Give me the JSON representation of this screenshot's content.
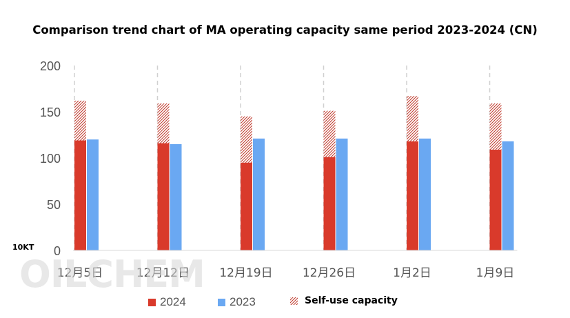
{
  "watermark": "OILCHEM",
  "chart_data": {
    "type": "bar",
    "title": "Comparison trend chart of MA operating capacity same period 2023-2024 (CN)",
    "ylabel": "10KT",
    "ylim": [
      0,
      200
    ],
    "yticks": [
      0,
      50,
      100,
      150,
      200
    ],
    "grid": false,
    "legend_position": "bottom",
    "categories": [
      "12月5日",
      "12月12日",
      "12月19日",
      "12月26日",
      "1月2日",
      "1月9日"
    ],
    "series": [
      {
        "name": "2024",
        "color": "#d93a2b",
        "values": [
          119,
          116,
          95,
          101,
          118,
          109
        ]
      },
      {
        "name": "2023",
        "color": "#6aa8f2",
        "values": [
          120,
          115,
          121,
          121,
          121,
          118
        ]
      },
      {
        "name": "Self-use capacity",
        "color": "#c0392b",
        "pattern": "hatched",
        "stacked_on": "2024",
        "values": [
          43,
          43,
          50,
          50,
          49,
          50
        ]
      }
    ]
  }
}
